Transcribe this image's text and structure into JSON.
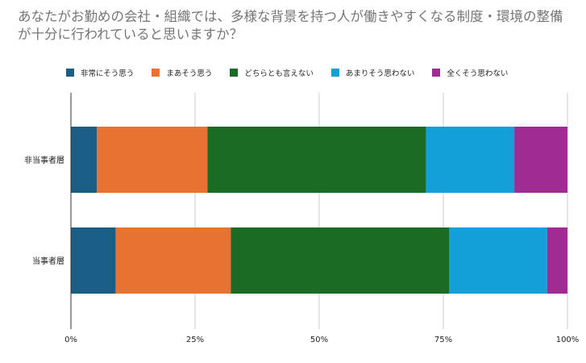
{
  "chart_data": {
    "type": "bar",
    "orientation": "horizontal",
    "stacked": "percent",
    "title": "あなたがお勤めの会社・組織では、多様な背景を持つ人が働きやすくなる制度・環境の整備が十分に行われていると思いますか？",
    "categories": [
      "非当事者層",
      "当事者層"
    ],
    "series": [
      {
        "name": "非常にそう思う",
        "color": "#1a5e86",
        "values": [
          5.2,
          9.0
        ]
      },
      {
        "name": "まあそう思う",
        "color": "#e87232",
        "values": [
          22.3,
          23.2
        ]
      },
      {
        "name": "どちらとも言えない",
        "color": "#1c6b25",
        "values": [
          44.0,
          44.0
        ]
      },
      {
        "name": "あまりそう思わない",
        "color": "#13a0d8",
        "values": [
          17.8,
          19.7
        ]
      },
      {
        "name": "全くそう思わない",
        "color": "#9e2c92",
        "values": [
          10.7,
          4.1
        ]
      }
    ],
    "x_ticks": [
      "0%",
      "25%",
      "50%",
      "75%",
      "100%"
    ],
    "xlim": [
      0,
      100
    ],
    "grid": true,
    "legend_position": "top"
  }
}
